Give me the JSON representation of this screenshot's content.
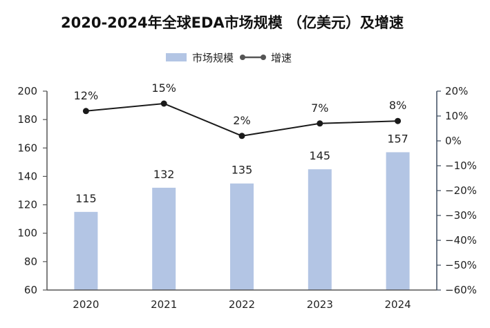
{
  "chart_data": {
    "type": "bar+line",
    "title": "2020-2024年全球EDA市场规模 （亿美元）及增速",
    "categories": [
      "2020",
      "2021",
      "2022",
      "2023",
      "2024"
    ],
    "series": [
      {
        "name": "市场规模",
        "type": "bar",
        "axis": "left",
        "values": [
          115,
          132,
          135,
          145,
          157
        ],
        "labels": [
          "115",
          "132",
          "135",
          "145",
          "157"
        ]
      },
      {
        "name": "增速",
        "type": "line",
        "axis": "right",
        "values": [
          12,
          15,
          2,
          7,
          8
        ],
        "labels": [
          "12%",
          "15%",
          "2%",
          "7%",
          "8%"
        ]
      }
    ],
    "left_axis": {
      "min": 60,
      "max": 200,
      "ticks": [
        "200",
        "180",
        "160",
        "140",
        "120",
        "100",
        "80",
        "60"
      ]
    },
    "right_axis": {
      "min": -60,
      "max": 20,
      "ticks": [
        "20%",
        "10%",
        "0%",
        "−10%",
        "−20%",
        "−30%",
        "−40%",
        "−50%",
        "−60%"
      ]
    },
    "legend_position": "top-center",
    "colors": {
      "bar": "#b3c5e4",
      "line": "#1a1a1a",
      "marker": "#555555",
      "axis": "#555555",
      "right_axis": "#3b4a5e"
    }
  }
}
